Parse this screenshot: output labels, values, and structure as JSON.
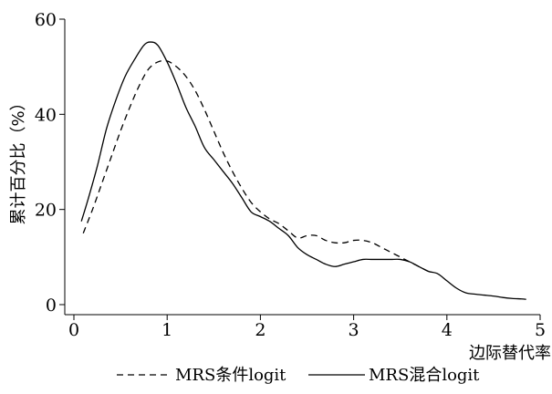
{
  "chart_data": {
    "type": "line",
    "title": "",
    "xlabel": "边际替代率",
    "ylabel": "累计百分比（%）",
    "xlim": [
      0,
      5
    ],
    "ylim": [
      0,
      60
    ],
    "x_ticks": [
      "0",
      "1",
      "2",
      "3",
      "4",
      "5"
    ],
    "y_ticks": [
      "0",
      "20",
      "40",
      "60"
    ],
    "grid": false,
    "legend_position": "bottom",
    "series": [
      {
        "name": "MRS条件logit",
        "style": "dashed",
        "color": "#000000",
        "points": [
          [
            0.1,
            15.0
          ],
          [
            0.2,
            20.0
          ],
          [
            0.3,
            25.5
          ],
          [
            0.4,
            31.0
          ],
          [
            0.5,
            36.5
          ],
          [
            0.6,
            41.5
          ],
          [
            0.7,
            46.0
          ],
          [
            0.8,
            49.5
          ],
          [
            0.9,
            51.0
          ],
          [
            1.0,
            51.2
          ],
          [
            1.1,
            50.0
          ],
          [
            1.2,
            48.0
          ],
          [
            1.3,
            45.0
          ],
          [
            1.4,
            41.0
          ],
          [
            1.5,
            36.5
          ],
          [
            1.6,
            32.0
          ],
          [
            1.7,
            28.0
          ],
          [
            1.8,
            24.5
          ],
          [
            1.9,
            21.5
          ],
          [
            2.0,
            19.5
          ],
          [
            2.1,
            18.0
          ],
          [
            2.2,
            17.0
          ],
          [
            2.3,
            15.5
          ],
          [
            2.4,
            14.0
          ],
          [
            2.5,
            14.5
          ],
          [
            2.6,
            14.5
          ],
          [
            2.7,
            13.5
          ],
          [
            2.8,
            13.0
          ],
          [
            2.9,
            13.0
          ],
          [
            3.0,
            13.5
          ],
          [
            3.1,
            13.5
          ],
          [
            3.2,
            13.0
          ],
          [
            3.3,
            12.0
          ],
          [
            3.4,
            11.0
          ],
          [
            3.5,
            10.0
          ],
          [
            3.6,
            9.0
          ],
          [
            3.7,
            8.0
          ],
          [
            3.8,
            7.0
          ]
        ]
      },
      {
        "name": "MRS混合logit",
        "style": "solid",
        "color": "#000000",
        "points": [
          [
            0.08,
            17.5
          ],
          [
            0.15,
            22.0
          ],
          [
            0.25,
            29.0
          ],
          [
            0.35,
            37.0
          ],
          [
            0.45,
            43.0
          ],
          [
            0.55,
            48.0
          ],
          [
            0.65,
            51.5
          ],
          [
            0.75,
            54.5
          ],
          [
            0.82,
            55.2
          ],
          [
            0.9,
            54.5
          ],
          [
            1.0,
            51.0
          ],
          [
            1.1,
            46.5
          ],
          [
            1.2,
            41.5
          ],
          [
            1.3,
            37.5
          ],
          [
            1.4,
            33.0
          ],
          [
            1.5,
            30.5
          ],
          [
            1.6,
            28.0
          ],
          [
            1.7,
            25.5
          ],
          [
            1.8,
            22.5
          ],
          [
            1.9,
            19.5
          ],
          [
            2.0,
            18.5
          ],
          [
            2.1,
            17.5
          ],
          [
            2.2,
            16.0
          ],
          [
            2.3,
            14.5
          ],
          [
            2.4,
            12.0
          ],
          [
            2.5,
            10.5
          ],
          [
            2.6,
            9.5
          ],
          [
            2.7,
            8.5
          ],
          [
            2.8,
            8.0
          ],
          [
            2.9,
            8.5
          ],
          [
            3.0,
            9.0
          ],
          [
            3.1,
            9.5
          ],
          [
            3.2,
            9.5
          ],
          [
            3.3,
            9.5
          ],
          [
            3.4,
            9.5
          ],
          [
            3.5,
            9.5
          ],
          [
            3.6,
            9.0
          ],
          [
            3.7,
            8.0
          ],
          [
            3.8,
            7.0
          ],
          [
            3.9,
            6.5
          ],
          [
            4.0,
            5.0
          ],
          [
            4.1,
            3.5
          ],
          [
            4.2,
            2.5
          ],
          [
            4.3,
            2.2
          ],
          [
            4.4,
            2.0
          ],
          [
            4.5,
            1.8
          ],
          [
            4.6,
            1.5
          ],
          [
            4.7,
            1.3
          ],
          [
            4.8,
            1.2
          ],
          [
            4.85,
            1.1
          ]
        ]
      }
    ]
  }
}
